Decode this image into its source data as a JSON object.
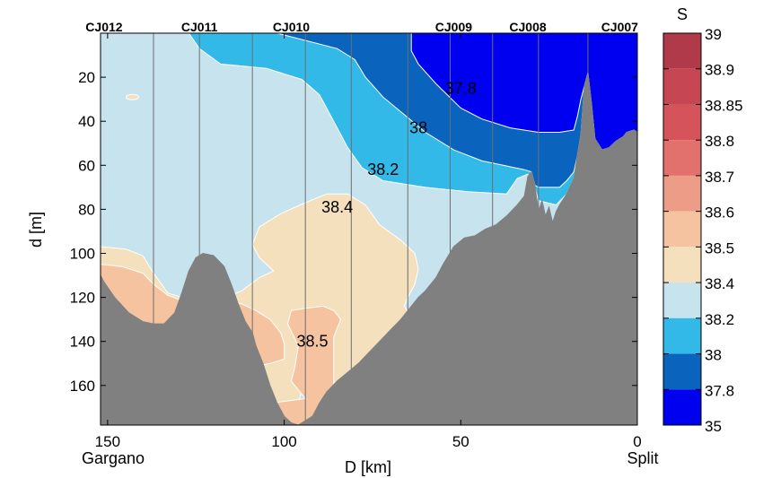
{
  "chart_data": {
    "type": "contour",
    "xlabel": "D [km]",
    "ylabel": "d [m]",
    "colorbar_label": "S",
    "xlim": [
      152,
      0
    ],
    "ylim": [
      0,
      178
    ],
    "x_ticks": [
      150,
      100,
      50,
      0
    ],
    "y_ticks": [
      20,
      40,
      60,
      80,
      100,
      120,
      140,
      160
    ],
    "x_end_labels": {
      "left": "Gargano",
      "right": "Split"
    },
    "stations": [
      {
        "name": "CJ012",
        "km": 151
      },
      {
        "name": "CJ011",
        "km": 124
      },
      {
        "name": "CJ010",
        "km": 98
      },
      {
        "name": "CJ009",
        "km": 52
      },
      {
        "name": "CJ008",
        "km": 31
      },
      {
        "name": "CJ007",
        "km": 5
      }
    ],
    "cast_lines_km": [
      152,
      137,
      124,
      109,
      94,
      81,
      65,
      53,
      41,
      28,
      14
    ],
    "colorbar": {
      "labels": [
        "39",
        "38.9",
        "38.85",
        "38.8",
        "38.7",
        "38.6",
        "38.5",
        "38.4",
        "38.2",
        "38",
        "37.8",
        "35"
      ],
      "colors": [
        "#b03a4a",
        "#c64653",
        "#d5545b",
        "#e2706d",
        "#ec9c87",
        "#f5c39f",
        "#f5e0bd",
        "#c6e3ee",
        "#32b9e8",
        "#0a64bd",
        "#0000f0"
      ]
    },
    "contour_labels": [
      {
        "text": "37.8",
        "km": 50,
        "depth": 25
      },
      {
        "text": "38",
        "km": 62,
        "depth": 43
      },
      {
        "text": "38.2",
        "km": 72,
        "depth": 62
      },
      {
        "text": "38.4",
        "km": 85,
        "depth": 79
      },
      {
        "text": "38.5",
        "km": 92,
        "depth": 140
      }
    ],
    "bathymetry": [
      [
        152,
        110
      ],
      [
        151,
        113
      ],
      [
        148,
        120
      ],
      [
        144,
        127
      ],
      [
        140,
        131
      ],
      [
        137,
        132
      ],
      [
        134,
        132
      ],
      [
        131,
        127
      ],
      [
        129,
        118
      ],
      [
        127,
        108
      ],
      [
        125,
        102
      ],
      [
        123,
        100
      ],
      [
        120,
        101
      ],
      [
        117,
        106
      ],
      [
        115,
        114
      ],
      [
        113,
        123
      ],
      [
        111,
        131
      ],
      [
        109,
        136
      ],
      [
        108,
        142
      ],
      [
        106,
        150
      ],
      [
        104,
        160
      ],
      [
        102,
        168
      ],
      [
        100,
        174
      ],
      [
        98,
        177
      ],
      [
        96,
        178
      ],
      [
        94,
        176
      ],
      [
        92,
        174
      ],
      [
        90,
        168
      ],
      [
        88,
        163
      ],
      [
        85,
        158
      ],
      [
        82,
        154
      ],
      [
        79,
        150
      ],
      [
        76,
        145
      ],
      [
        73,
        140
      ],
      [
        70,
        135
      ],
      [
        67,
        130
      ],
      [
        64,
        124
      ],
      [
        62,
        120
      ],
      [
        60,
        117
      ],
      [
        57,
        111
      ],
      [
        55,
        105
      ],
      [
        52,
        97
      ],
      [
        49,
        93
      ],
      [
        46,
        92
      ],
      [
        43,
        89
      ],
      [
        40,
        87
      ],
      [
        37,
        83
      ],
      [
        34,
        78
      ],
      [
        32,
        74
      ],
      [
        31,
        65
      ],
      [
        30,
        63
      ],
      [
        29,
        69
      ],
      [
        28,
        81
      ],
      [
        27,
        76
      ],
      [
        26,
        83
      ],
      [
        25,
        79
      ],
      [
        24,
        86
      ],
      [
        23,
        81
      ],
      [
        22,
        78
      ],
      [
        20,
        73
      ],
      [
        18,
        66
      ],
      [
        17,
        56
      ],
      [
        16,
        46
      ],
      [
        15,
        24
      ],
      [
        14,
        18
      ],
      [
        13,
        32
      ],
      [
        12,
        48
      ],
      [
        10,
        53
      ],
      [
        8,
        52
      ],
      [
        6,
        49
      ],
      [
        4,
        47
      ],
      [
        3,
        45
      ],
      [
        1,
        44
      ],
      [
        0,
        45
      ]
    ],
    "regions": [
      {
        "S": "38.2-38.4",
        "poly": [
          [
            152,
            0
          ],
          [
            0,
            0
          ],
          [
            0,
            178
          ],
          [
            152,
            178
          ]
        ]
      },
      {
        "S": "38.0-38.2",
        "poly": [
          [
            127,
            0
          ],
          [
            124,
            7
          ],
          [
            118,
            14
          ],
          [
            105,
            16
          ],
          [
            95,
            21
          ],
          [
            90,
            28
          ],
          [
            86,
            40
          ],
          [
            82,
            52
          ],
          [
            78,
            61
          ],
          [
            72,
            67
          ],
          [
            60,
            70
          ],
          [
            48,
            72
          ],
          [
            37,
            73
          ],
          [
            34,
            66
          ],
          [
            31,
            64
          ],
          [
            29,
            70
          ],
          [
            28,
            76
          ],
          [
            23,
            78
          ],
          [
            20,
            73
          ],
          [
            18,
            66
          ],
          [
            17,
            56
          ],
          [
            16,
            46
          ],
          [
            15,
            24
          ],
          [
            14,
            18
          ],
          [
            13,
            32
          ],
          [
            12,
            48
          ],
          [
            10,
            53
          ],
          [
            8,
            52
          ],
          [
            6,
            49
          ],
          [
            4,
            47
          ],
          [
            3,
            45
          ],
          [
            1,
            44
          ],
          [
            0,
            45
          ],
          [
            0,
            0
          ]
        ]
      },
      {
        "S": "37.8-38.0",
        "poly": [
          [
            102,
            0
          ],
          [
            85,
            7
          ],
          [
            80,
            12
          ],
          [
            77,
            20
          ],
          [
            72,
            29
          ],
          [
            66,
            37
          ],
          [
            60,
            45
          ],
          [
            52,
            53
          ],
          [
            44,
            58
          ],
          [
            38,
            60
          ],
          [
            32,
            62
          ],
          [
            30,
            63
          ],
          [
            29,
            69
          ],
          [
            28,
            70
          ],
          [
            22,
            70
          ],
          [
            20,
            67
          ],
          [
            18,
            63
          ],
          [
            17,
            56
          ],
          [
            16,
            46
          ],
          [
            15,
            24
          ],
          [
            14,
            18
          ],
          [
            13,
            32
          ],
          [
            12,
            48
          ],
          [
            10,
            53
          ],
          [
            8,
            52
          ],
          [
            6,
            49
          ],
          [
            4,
            47
          ],
          [
            3,
            45
          ],
          [
            1,
            44
          ],
          [
            0,
            45
          ],
          [
            0,
            0
          ]
        ]
      },
      {
        "S": "35-37.8",
        "poly": [
          [
            64,
            0
          ],
          [
            64,
            8
          ],
          [
            62,
            14
          ],
          [
            57,
            23
          ],
          [
            50,
            34
          ],
          [
            44,
            39
          ],
          [
            36,
            43
          ],
          [
            28,
            45
          ],
          [
            22,
            45
          ],
          [
            18,
            44
          ],
          [
            17,
            38
          ],
          [
            16,
            30
          ],
          [
            15,
            24
          ],
          [
            14,
            18
          ],
          [
            13,
            32
          ],
          [
            12,
            48
          ],
          [
            10,
            53
          ],
          [
            8,
            52
          ],
          [
            6,
            49
          ],
          [
            4,
            47
          ],
          [
            3,
            45
          ],
          [
            1,
            44
          ],
          [
            0,
            45
          ],
          [
            0,
            0
          ]
        ]
      },
      {
        "S": "38.4-38.5",
        "poly": [
          [
            152,
            97
          ],
          [
            145,
            98
          ],
          [
            140,
            101
          ],
          [
            137,
            109
          ],
          [
            133,
            118
          ],
          [
            125,
            122
          ],
          [
            118,
            121
          ],
          [
            112,
            117
          ],
          [
            107,
            111
          ],
          [
            103,
            108
          ],
          [
            107,
            102
          ],
          [
            109,
            96
          ],
          [
            107,
            88
          ],
          [
            101,
            82
          ],
          [
            94,
            77
          ],
          [
            88,
            73
          ],
          [
            82,
            73
          ],
          [
            77,
            78
          ],
          [
            73,
            87
          ],
          [
            67,
            94
          ],
          [
            63,
            100
          ],
          [
            62,
            107
          ],
          [
            63,
            114
          ],
          [
            65,
            120
          ],
          [
            66,
            124
          ],
          [
            63,
            131
          ],
          [
            60,
            137
          ],
          [
            58,
            140
          ],
          [
            57,
            141
          ],
          [
            62,
            146
          ],
          [
            68,
            152
          ],
          [
            74,
            158
          ],
          [
            80,
            163
          ],
          [
            85,
            160
          ],
          [
            88,
            154
          ],
          [
            92,
            147
          ],
          [
            98,
            178
          ],
          [
            152,
            178
          ]
        ]
      },
      {
        "S": "38.5-38.6",
        "poly": [
          [
            152,
            105
          ],
          [
            146,
            106
          ],
          [
            140,
            109
          ],
          [
            137,
            114
          ],
          [
            133,
            119
          ],
          [
            128,
            122
          ],
          [
            121,
            122
          ],
          [
            116,
            121
          ],
          [
            112,
            123
          ],
          [
            108,
            126
          ],
          [
            104,
            130
          ],
          [
            101,
            136
          ],
          [
            100,
            141
          ],
          [
            100,
            148
          ],
          [
            104,
            150
          ],
          [
            110,
            152
          ],
          [
            112,
            178
          ],
          [
            102,
            178
          ],
          [
            98,
            178
          ],
          [
            96,
            178
          ],
          [
            94,
            177
          ],
          [
            92,
            175
          ],
          [
            90,
            170
          ],
          [
            88,
            168
          ],
          [
            86,
            160
          ],
          [
            86,
            148
          ],
          [
            86,
            138
          ],
          [
            84,
            130
          ],
          [
            86,
            126
          ],
          [
            89,
            124
          ],
          [
            94,
            125
          ],
          [
            98,
            126
          ],
          [
            99,
            132
          ],
          [
            96,
            142
          ],
          [
            97,
            152
          ],
          [
            98,
            158
          ],
          [
            94,
            166
          ],
          [
            152,
            178
          ]
        ]
      }
    ],
    "notes": "Salinity section along transect from Gargano (150 km) to Split (0 km); grey area is sea bottom."
  }
}
